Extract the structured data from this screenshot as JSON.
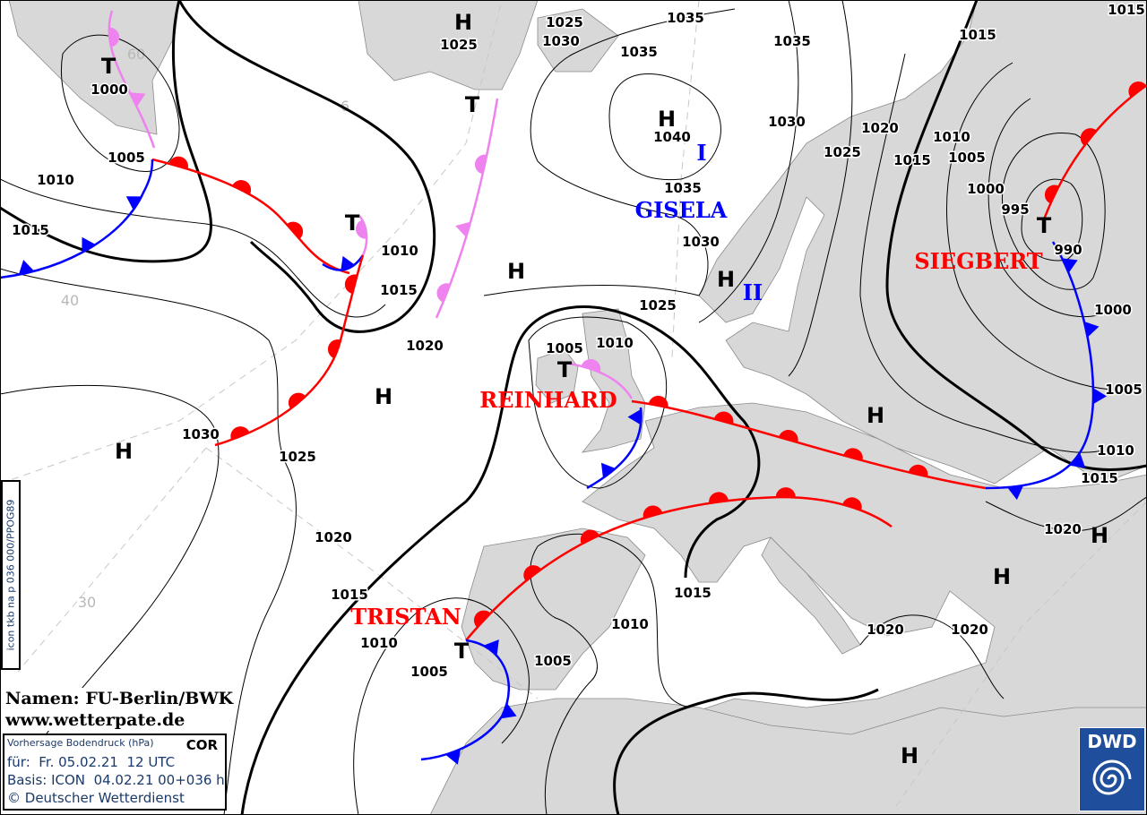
{
  "map": {
    "pressure_labels": [
      "1000",
      "1005",
      "1010",
      "1015",
      "1010",
      "1015",
      "1020",
      "1030",
      "1025",
      "1020",
      "1015",
      "1010",
      "1005",
      "1005",
      "1010",
      "1015",
      "1020",
      "1020",
      "1020",
      "1015",
      "1010",
      "1005",
      "1000",
      "990",
      "995",
      "1000",
      "1005",
      "1010",
      "1015",
      "1020",
      "1025",
      "1030",
      "1035",
      "1040",
      "1030",
      "1025",
      "1035",
      "1035",
      "1035",
      "1025",
      "1030",
      "1025",
      "1015",
      "1015",
      "1005",
      "1010"
    ],
    "high_marker": "H",
    "low_marker": "T",
    "graticule_labels": [
      "60",
      "6",
      "40",
      "30"
    ],
    "systems": {
      "gisela": "GISELA",
      "gisela_1": "I",
      "gisela_2": "II",
      "siegbert": "SIEGBERT",
      "reinhard": "REINHARD",
      "tristan": "TRISTAN"
    },
    "colors": {
      "warm_front": "#ff0000",
      "cold_front": "#0000ff",
      "occlusion": "#ee82ee",
      "land": "#d8d8d8",
      "low_names": "#ff0000",
      "high_names": "#0000ff"
    }
  },
  "credits": {
    "names": "Namen: FU-Berlin/BWK",
    "website": "www.wetterpate.de"
  },
  "info": {
    "title": "Vorhersage Bodendruck (hPa)",
    "status": "COR",
    "valid": "für:  Fr. 05.02.21  12 UTC",
    "basis": "Basis: ICON  04.02.21 00+036 h",
    "copyright": "© Deutscher Wetterdienst"
  },
  "product_code": "icon tkb na p 036 000/PPOG89",
  "logo": {
    "text": "DWD"
  }
}
